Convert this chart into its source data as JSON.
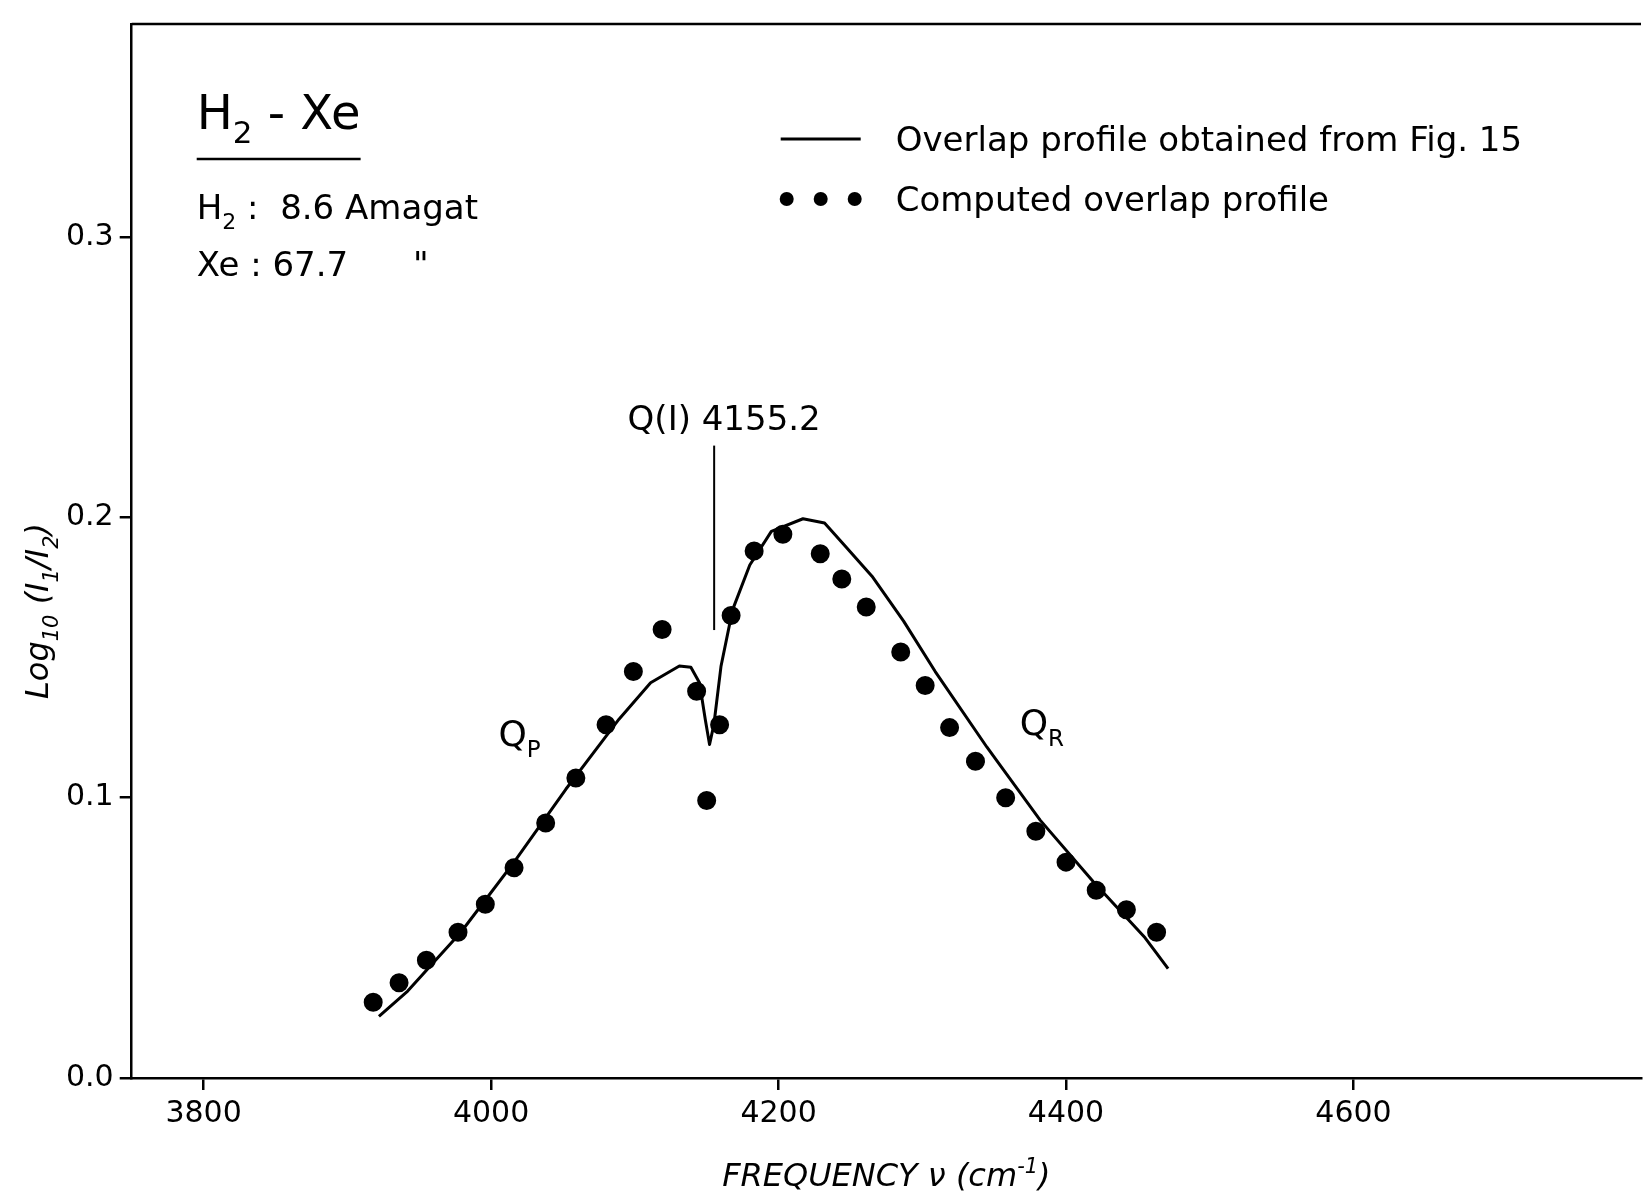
{
  "chart_data": {
    "type": "line",
    "xlabel": "FREQUENCY ν (cm$^{-1}$)",
    "ylabel": "Log$_{10}$ (I$_{1}$/I$_{2}$)",
    "xlim": [
      3750,
      4800
    ],
    "xticks": [
      3800,
      4000,
      4200,
      4400,
      4600
    ],
    "ylim": [
      0,
      0.376
    ],
    "yticks": [
      {
        "value": 0,
        "label": "0.0"
      },
      0.1,
      0.2,
      0.3
    ],
    "grid": false,
    "legend": "top right",
    "series": [
      {
        "name": "Overlap profile obtained from Fig. 15",
        "marker": "none",
        "line_style": "solid",
        "color": "#000000",
        "x": [
          3922,
          3942,
          3979,
          4016,
          4052,
          4089,
          4111,
          4131,
          4139,
          4145,
          4149,
          4152,
          4155,
          4160,
          4168,
          4180,
          4195,
          4217,
          4232,
          4246,
          4265,
          4287,
          4309,
          4345,
          4382,
          4419,
          4455,
          4471
        ],
        "values": [
          0.022,
          0.031,
          0.052,
          0.077,
          0.103,
          0.128,
          0.141,
          0.147,
          0.1465,
          0.141,
          0.128,
          0.119,
          0.126,
          0.147,
          0.167,
          0.183,
          0.195,
          0.1995,
          0.198,
          0.19,
          0.179,
          0.163,
          0.145,
          0.118,
          0.092,
          0.07,
          0.05,
          0.039
        ]
      },
      {
        "name": "Computed overlap profile",
        "type": "scatter",
        "marker": "circle",
        "color": "#000000",
        "x": [
          3918,
          3936,
          3955,
          3977,
          3996,
          4016,
          4038,
          4059,
          4080,
          4099,
          4119,
          4143,
          4150,
          4159,
          4167,
          4183,
          4203,
          4229,
          4244,
          4261,
          4285,
          4302,
          4319,
          4337,
          4358,
          4379,
          4400,
          4421,
          4442,
          4463
        ],
        "values": [
          0.027,
          0.034,
          0.042,
          0.052,
          0.062,
          0.075,
          0.091,
          0.107,
          0.126,
          0.145,
          0.16,
          0.138,
          0.099,
          0.126,
          0.165,
          0.188,
          0.194,
          0.187,
          0.178,
          0.168,
          0.152,
          0.14,
          0.125,
          0.113,
          0.1,
          0.088,
          0.077,
          0.067,
          0.06,
          0.052
        ]
      }
    ],
    "ref_lines": [
      {
        "axis": "x",
        "value": 4155.2,
        "label": "Q(I) 4155.2"
      }
    ],
    "annotations": [
      "H$_{2}$ - Xe",
      "H$_{2}$ :  8.6 Amagat",
      "Xe : 67.7      \"",
      "Q$_{P}$",
      "Q$_{R}$"
    ]
  }
}
